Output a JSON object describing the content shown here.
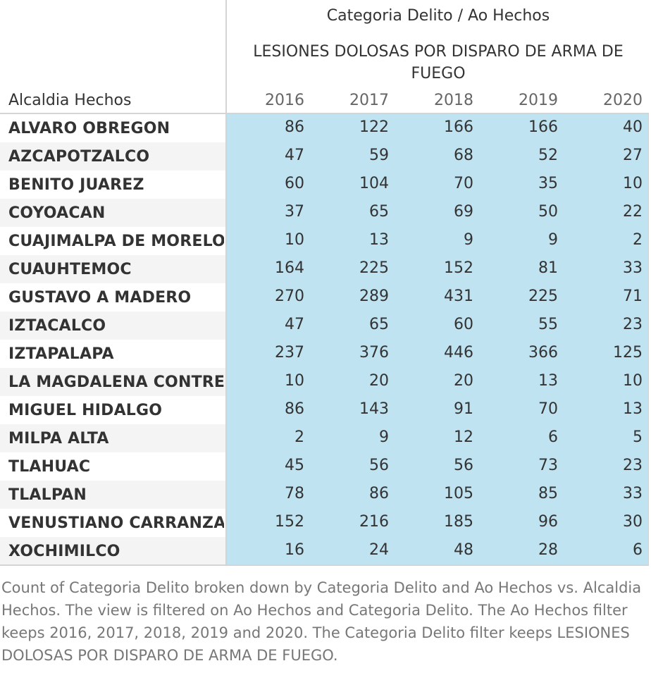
{
  "chart_data": {
    "type": "table",
    "column_header": "Categoria Delito  /  Ao Hechos",
    "measure_title": "LESIONES DOLOSAS POR DISPARO DE ARMA DE FUEGO",
    "row_header": "Alcaldia Hechos",
    "columns": [
      "2016",
      "2017",
      "2018",
      "2019",
      "2020"
    ],
    "rows": [
      {
        "label": "ALVARO OBREGON",
        "values": [
          86,
          122,
          166,
          166,
          40
        ]
      },
      {
        "label": "AZCAPOTZALCO",
        "values": [
          47,
          59,
          68,
          52,
          27
        ]
      },
      {
        "label": "BENITO JUAREZ",
        "values": [
          60,
          104,
          70,
          35,
          10
        ]
      },
      {
        "label": "COYOACAN",
        "values": [
          37,
          65,
          69,
          50,
          22
        ]
      },
      {
        "label": "CUAJIMALPA DE MORELOS",
        "values": [
          10,
          13,
          9,
          9,
          2
        ]
      },
      {
        "label": "CUAUHTEMOC",
        "values": [
          164,
          225,
          152,
          81,
          33
        ]
      },
      {
        "label": "GUSTAVO A MADERO",
        "values": [
          270,
          289,
          431,
          225,
          71
        ]
      },
      {
        "label": "IZTACALCO",
        "values": [
          47,
          65,
          60,
          55,
          23
        ]
      },
      {
        "label": "IZTAPALAPA",
        "values": [
          237,
          376,
          446,
          366,
          125
        ]
      },
      {
        "label": "LA MAGDALENA CONTRER..",
        "values": [
          10,
          20,
          20,
          13,
          10
        ]
      },
      {
        "label": "MIGUEL HIDALGO",
        "values": [
          86,
          143,
          91,
          70,
          13
        ]
      },
      {
        "label": "MILPA ALTA",
        "values": [
          2,
          9,
          12,
          6,
          5
        ]
      },
      {
        "label": "TLAHUAC",
        "values": [
          45,
          56,
          56,
          73,
          23
        ]
      },
      {
        "label": "TLALPAN",
        "values": [
          78,
          86,
          105,
          85,
          33
        ]
      },
      {
        "label": "VENUSTIANO CARRANZA",
        "values": [
          152,
          216,
          185,
          96,
          30
        ]
      },
      {
        "label": "XOCHIMILCO",
        "values": [
          16,
          24,
          48,
          28,
          6
        ]
      }
    ]
  },
  "caption": "Count of Categoria Delito broken down by Categoria Delito and Ao Hechos vs. Alcaldia Hechos. The view is filtered on Ao Hechos and Categoria Delito. The Ao Hechos filter keeps 2016, 2017, 2018, 2019 and 2020. The Categoria Delito filter keeps LESIONES DOLOSAS POR DISPARO DE ARMA DE FUEGO.",
  "colors": {
    "cell_fill": "#bfe3f0",
    "row_stripe": "#f4f4f4",
    "grid_line": "#d4d4d4",
    "text": "#333333",
    "caption_text": "#777777"
  }
}
